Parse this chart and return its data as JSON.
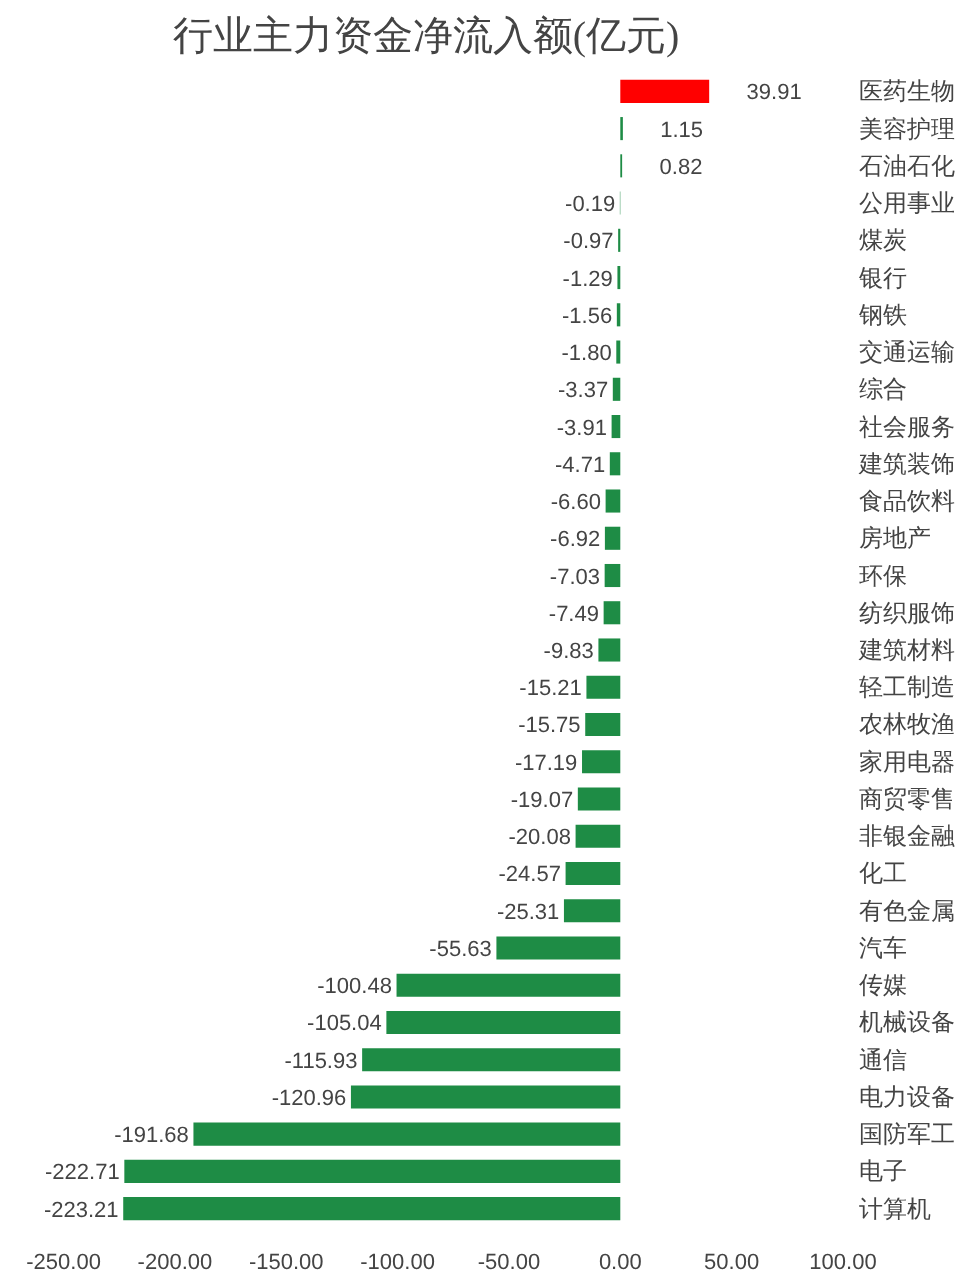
{
  "chart_data": {
    "type": "bar",
    "orientation": "horizontal",
    "title": "行业主力资金净流入额(亿元)",
    "categories": [
      "医药生物",
      "美容护理",
      "石油石化",
      "公用事业",
      "煤炭",
      "银行",
      "钢铁",
      "交通运输",
      "综合",
      "社会服务",
      "建筑装饰",
      "食品饮料",
      "房地产",
      "环保",
      "纺织服饰",
      "建筑材料",
      "轻工制造",
      "农林牧渔",
      "家用电器",
      "商贸零售",
      "非银金融",
      "化工",
      "有色金属",
      "汽车",
      "传媒",
      "机械设备",
      "通信",
      "电力设备",
      "国防军工",
      "电子",
      "计算机"
    ],
    "values": [
      39.91,
      1.15,
      0.82,
      -0.19,
      -0.97,
      -1.29,
      -1.56,
      -1.8,
      -3.37,
      -3.91,
      -4.71,
      -6.6,
      -6.92,
      -7.03,
      -7.49,
      -9.83,
      -15.21,
      -15.75,
      -17.19,
      -19.07,
      -20.08,
      -24.57,
      -25.31,
      -55.63,
      -100.48,
      -105.04,
      -115.93,
      -120.96,
      -191.68,
      -222.71,
      -223.21
    ],
    "value_labels": [
      "39.91",
      "1.15",
      "0.82",
      "-0.19",
      "-0.97",
      "-1.29",
      "-1.56",
      "-1.80",
      "-3.37",
      "-3.91",
      "-4.71",
      "-6.60",
      "-6.92",
      "-7.03",
      "-7.49",
      "-9.83",
      "-15.21",
      "-15.75",
      "-17.19",
      "-19.07",
      "-20.08",
      "-24.57",
      "-25.31",
      "-55.63",
      "-100.48",
      "-105.04",
      "-115.93",
      "-120.96",
      "-191.68",
      "-222.71",
      "-223.21"
    ],
    "colors": [
      "#ff0000",
      "#1e8c45",
      "#1e8c45",
      "#1e8c45",
      "#1e8c45",
      "#1e8c45",
      "#1e8c45",
      "#1e8c45",
      "#1e8c45",
      "#1e8c45",
      "#1e8c45",
      "#1e8c45",
      "#1e8c45",
      "#1e8c45",
      "#1e8c45",
      "#1e8c45",
      "#1e8c45",
      "#1e8c45",
      "#1e8c45",
      "#1e8c45",
      "#1e8c45",
      "#1e8c45",
      "#1e8c45",
      "#1e8c45",
      "#1e8c45",
      "#1e8c45",
      "#1e8c45",
      "#1e8c45",
      "#1e8c45",
      "#1e8c45",
      "#1e8c45"
    ],
    "xlim": [
      -250,
      100
    ],
    "xticks": [
      {
        "value": -250,
        "label": "-250.00"
      },
      {
        "value": -200,
        "label": "-200.00"
      },
      {
        "value": -150,
        "label": "-150.00"
      },
      {
        "value": -100,
        "label": "-100.00"
      },
      {
        "value": -50,
        "label": "-50.00"
      },
      {
        "value": 0,
        "label": "0.00"
      },
      {
        "value": 50,
        "label": "50.00"
      },
      {
        "value": 100,
        "label": "100.00"
      }
    ],
    "grid": false
  }
}
